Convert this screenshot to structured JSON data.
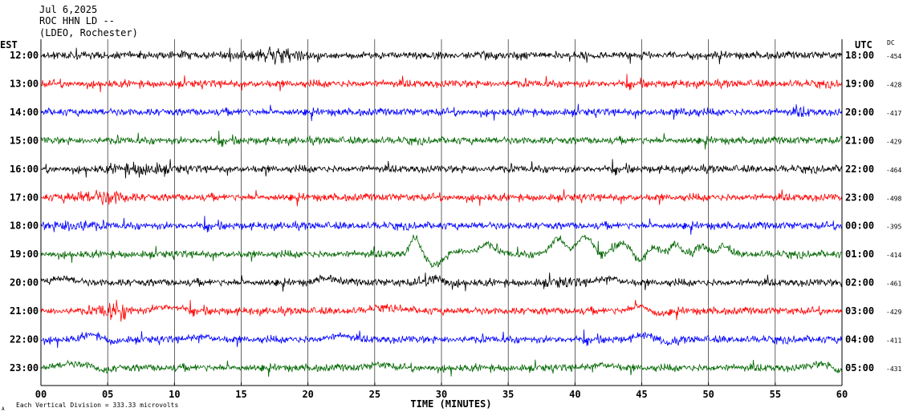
{
  "header": {
    "date": "Jul 6,2025",
    "station": "ROC HHN LD --",
    "network": "(LDEO, Rochester)"
  },
  "footer": {
    "scale_note": "Each Vertical Division =  333.33 microvolts",
    "corner_mark": "A"
  },
  "chart_data": {
    "type": "line",
    "subtype": "helicorder",
    "xlabel": "TIME (MINUTES)",
    "left_axis_label": "EST",
    "right_axis_label": "UTC",
    "dc_label": "DC",
    "xlim": [
      0,
      60
    ],
    "x_ticks": [
      0,
      5,
      10,
      15,
      20,
      25,
      30,
      35,
      40,
      45,
      50,
      55,
      60
    ],
    "x_tick_labels": [
      "00",
      "05",
      "10",
      "15",
      "20",
      "25",
      "30",
      "35",
      "40",
      "45",
      "50",
      "55",
      "60"
    ],
    "grid": "vertical",
    "colors": [
      "#000000",
      "#ff0000",
      "#0000ff",
      "#006600"
    ],
    "rows": [
      {
        "est": "12:00",
        "utc": "18:00",
        "dc": "-454",
        "color": "#000000"
      },
      {
        "est": "13:00",
        "utc": "19:00",
        "dc": "-428",
        "color": "#ff0000"
      },
      {
        "est": "14:00",
        "utc": "20:00",
        "dc": "-417",
        "color": "#0000ff"
      },
      {
        "est": "15:00",
        "utc": "21:00",
        "dc": "-429",
        "color": "#006600"
      },
      {
        "est": "16:00",
        "utc": "22:00",
        "dc": "-464",
        "color": "#000000"
      },
      {
        "est": "17:00",
        "utc": "23:00",
        "dc": "-498",
        "color": "#ff0000"
      },
      {
        "est": "18:00",
        "utc": "00:00",
        "dc": "-395",
        "color": "#0000ff"
      },
      {
        "est": "19:00",
        "utc": "01:00",
        "dc": "-414",
        "color": "#006600"
      },
      {
        "est": "20:00",
        "utc": "02:00",
        "dc": "-461",
        "color": "#000000"
      },
      {
        "est": "21:00",
        "utc": "03:00",
        "dc": "-429",
        "color": "#ff0000"
      },
      {
        "est": "22:00",
        "utc": "04:00",
        "dc": "-411",
        "color": "#0000ff"
      },
      {
        "est": "23:00",
        "utc": "05:00",
        "dc": "-431",
        "color": "#006600"
      }
    ]
  }
}
